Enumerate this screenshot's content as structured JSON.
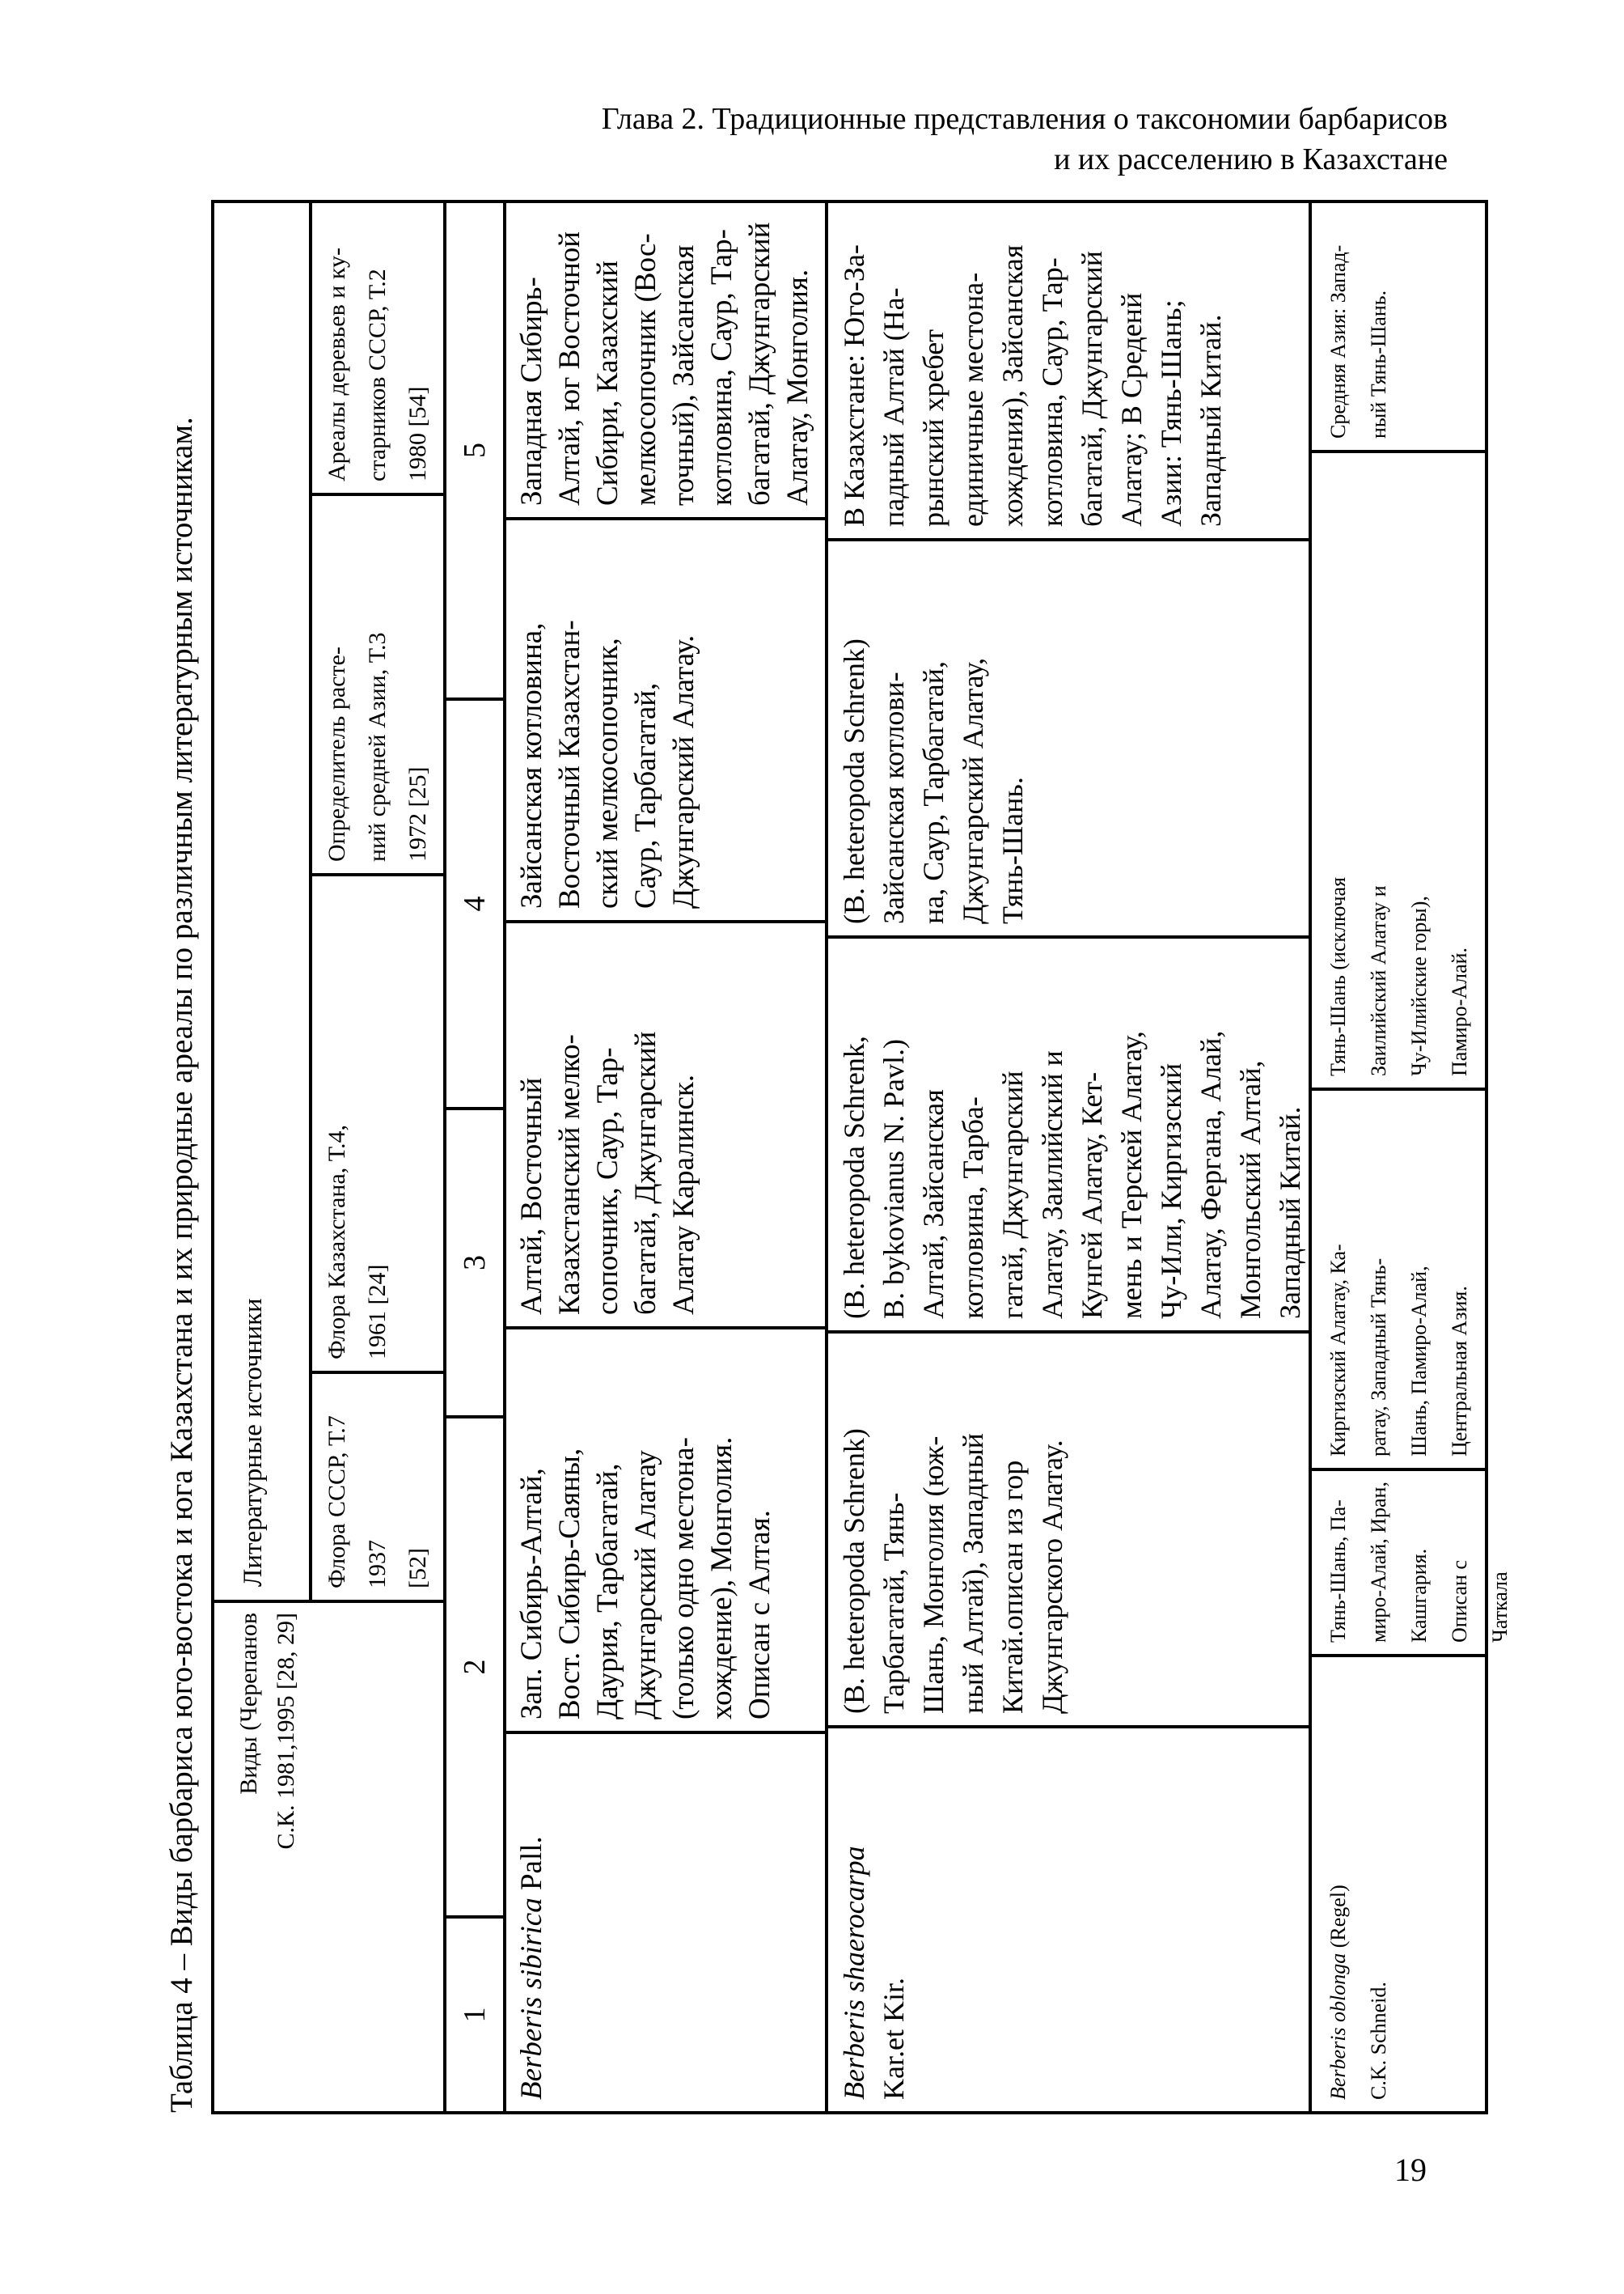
{
  "page": {
    "chapter_header_line1": "Глава 2. Традиционные представления о таксономии барбарисов",
    "chapter_header_line2": "и их расселению в Казахстане",
    "page_number": "19"
  },
  "table": {
    "caption": "Таблица 4 – Виды барбариса юго-востока и юга Казахстана и их природные ареалы по различным литературным источникам.",
    "header": {
      "species_col": "Виды (Черепанов\nС.К. 1981,1995 [28, 29]",
      "sources_group": "Литературные источники",
      "src_flora_sssr": "Флора СССР, Т.7 1937\n[52]",
      "src_flora_kaz": "Флора Казахстана, Т.4,\n1961 [24]",
      "src_opredelitel": "Определитель расте-\nний средней Азии, Т.3\n1972 [25]",
      "src_arealy": "Ареалы деревьев и ку-\nстарников СССР, Т.2\n1980 [54]"
    },
    "column_numbers": [
      "1",
      "2",
      "3",
      "4",
      "5"
    ],
    "rows": [
      {
        "sp_i": "Berberis sibirica",
        "sp_r": " Pall.",
        "c2": "Зап. Сибирь-Алтай,\nВост. Сибирь-Саяны,\nДаурия, Тарбагатай,\nДжунгарский Алатау\n(только одно местона-\nхождение), Монголия.\nОписан с Алтая.",
        "c3": "Алтай, Восточный\nКазахстанский мелко-\nсопочник, Саур, Тар-\nбагатай, Джунгарский\nАлатау Каралинск.",
        "c4": "Зайсанская котловина,\nВосточный Казахстан-\nский мелкосопочник,\nСаур, Тарбагатай,\nДжунгарский Алатау.",
        "c5": "Западная Сибирь-\nАлтай, юг Восточной\nСибири, Казахский\nмелкосопочник (Вос-\nточный), Зайсанская\nкотловина, Саур, Тар-\nбагатай, Джунгарский\nАлатау, Монголия."
      },
      {
        "sp_i": "Berberis shaerocarpa",
        "sp_r": "\nKar.et Kir.",
        "c2": "(B. heteropoda Schrenk)\nТарбагатай, Тянь-\nШань, Монголия (юж-\nный Алтай), Западный\nКитай.описан из гор\nДжунгарского Алатау.",
        "c3": "(B. heteropoda Schrenk,\nB. bykovianus N. Pavl.)\nАлтай, Зайсанская\nкотловина, Тарба-\nгатай, Джунгарский\nАлатау, Заилийский и\nКунгей Алатау, Кет-\nмень и Терскей Алатау,\nЧу-Или, Киргизский\nАлатау, Фергана, Алай,\nМонгольский Алтай,\nЗападный Китай.",
        "c4": "(B. heteropoda Schrenk)\nЗайсанская котлови-\nна, Саур, Тарбагатай,\nДжунгарский Алатау,\nТянь-Шань.",
        "c5": "В Казахстане: Юго-За-\nпадный Алтай (На-\nрынский хребет\nединичные местона-\nхождения), Зайсанская\nкотловина, Саур, Тар-\nбагатай, Джунгарский\nАлатау; В Среденй\nАзии: Тянь-Шань;\nЗападный Китай."
      },
      {
        "sp_i": "Berberis oblonga",
        "sp_r": " (Regel)\nC.K. Schneid.",
        "c2": "Тянь-Шань, Па-\nмиро-Алай, Иран,\nКашгария. Описан с\nЧаткала",
        "c3": "Киргизский Алатау, Ка-\nратау, Западный Тянь-\nШань, Памиро-Алай,\nЦентральная Азия.",
        "c4": "Тянь-Шань (исключая\nЗаилийский Алатау и\nЧу-Илийские горы),\nПамиро-Алай.",
        "c5": "Средняя Азия: Запад-\nный Тянь-Шань."
      }
    ]
  }
}
